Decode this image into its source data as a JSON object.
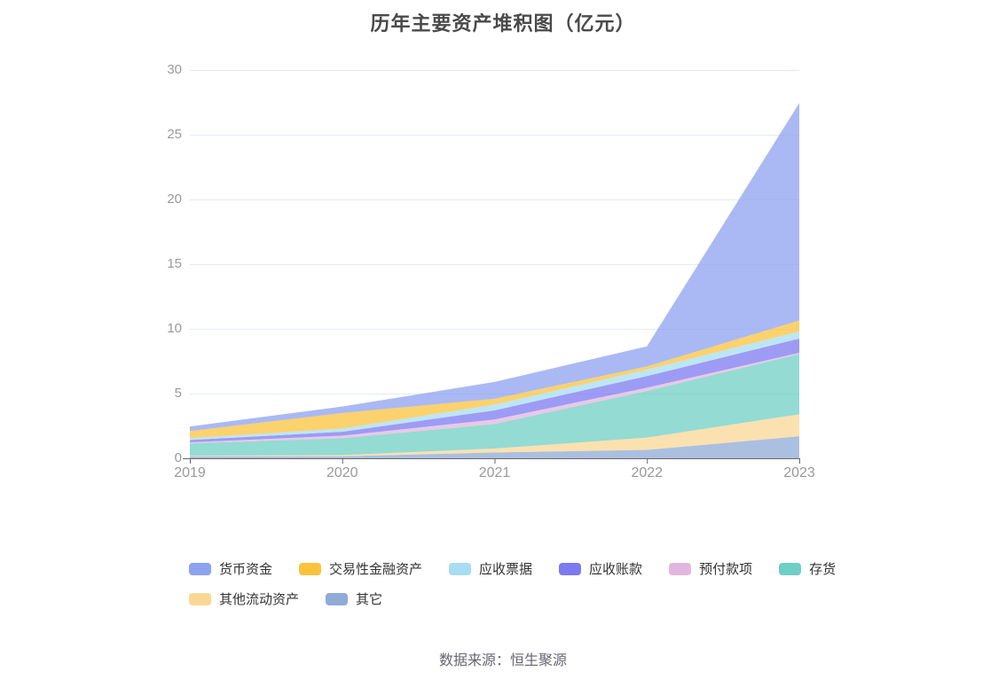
{
  "chart_data": {
    "type": "area",
    "stacked": true,
    "title": "历年主要资产堆积图（亿元）",
    "x": [
      "2019",
      "2020",
      "2021",
      "2022",
      "2023"
    ],
    "series": [
      {
        "name": "货币资金",
        "color": "#8da2f0",
        "values": [
          0.35,
          0.5,
          1.3,
          1.55,
          16.8
        ]
      },
      {
        "name": "交易性金融资产",
        "color": "#fac33c",
        "values": [
          0.55,
          1.2,
          0.45,
          0.25,
          0.85
        ]
      },
      {
        "name": "应收票据",
        "color": "#a7ddf2",
        "values": [
          0.15,
          0.25,
          0.45,
          0.5,
          0.55
        ]
      },
      {
        "name": "应收账款",
        "color": "#7c7af0",
        "values": [
          0.18,
          0.3,
          0.7,
          0.9,
          1.1
        ]
      },
      {
        "name": "预付款项",
        "color": "#e3b6dd",
        "values": [
          0.08,
          0.2,
          0.35,
          0.25,
          0.1
        ]
      },
      {
        "name": "存货",
        "color": "#6fcfc4",
        "values": [
          0.95,
          1.3,
          1.9,
          3.6,
          4.65
        ]
      },
      {
        "name": "其他流动资产",
        "color": "#fbd795",
        "values": [
          0.05,
          0.1,
          0.3,
          0.95,
          1.7
        ]
      },
      {
        "name": "其它",
        "color": "#8fabd6",
        "values": [
          0.15,
          0.15,
          0.45,
          0.65,
          1.7
        ]
      }
    ],
    "stack_order": "first_series_on_top",
    "totals_by_year": [
      2.46,
      4.0,
      5.9,
      8.65,
      27.45
    ],
    "ylim": [
      0,
      30
    ],
    "ytick_step": 5,
    "ytick_labels": [
      "0",
      "5",
      "10",
      "15",
      "20",
      "25",
      "30"
    ],
    "grid": true,
    "legend_position": "bottom",
    "area_opacity": 0.75
  },
  "colors": {
    "title_text": "#4a4a4a",
    "axis_tick_label": "#999999",
    "axis_line": "#666666",
    "grid_line": "#e4e9f7",
    "legend_text": "#333333",
    "footer_text": "#666670"
  },
  "footer": {
    "source_text": "数据来源：恒生聚源"
  }
}
